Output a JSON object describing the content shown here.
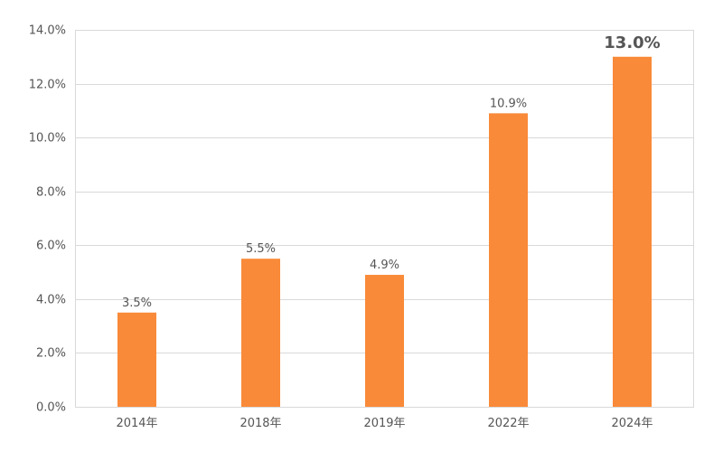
{
  "chart_data": {
    "type": "bar",
    "categories": [
      "2014年",
      "2018年",
      "2019年",
      "2022年",
      "2024年"
    ],
    "values": [
      3.5,
      5.5,
      4.9,
      10.9,
      13.0
    ],
    "data_labels": [
      "3.5%",
      "5.5%",
      "4.9%",
      "10.9%",
      "13.0%"
    ],
    "highlight_index": 4,
    "y_ticks": [
      0,
      2,
      4,
      6,
      8,
      10,
      12,
      14
    ],
    "y_tick_labels": [
      "0.0%",
      "2.0%",
      "4.0%",
      "6.0%",
      "8.0%",
      "10.0%",
      "12.0%",
      "14.0%"
    ],
    "ylim": [
      0,
      14
    ],
    "title": "",
    "xlabel": "",
    "ylabel": "",
    "grid": true,
    "legend": "none",
    "colors": {
      "bar": "#F98A39",
      "highlight_label": "#F98A39",
      "label": "#555555",
      "grid": "#D9D9D9"
    }
  }
}
